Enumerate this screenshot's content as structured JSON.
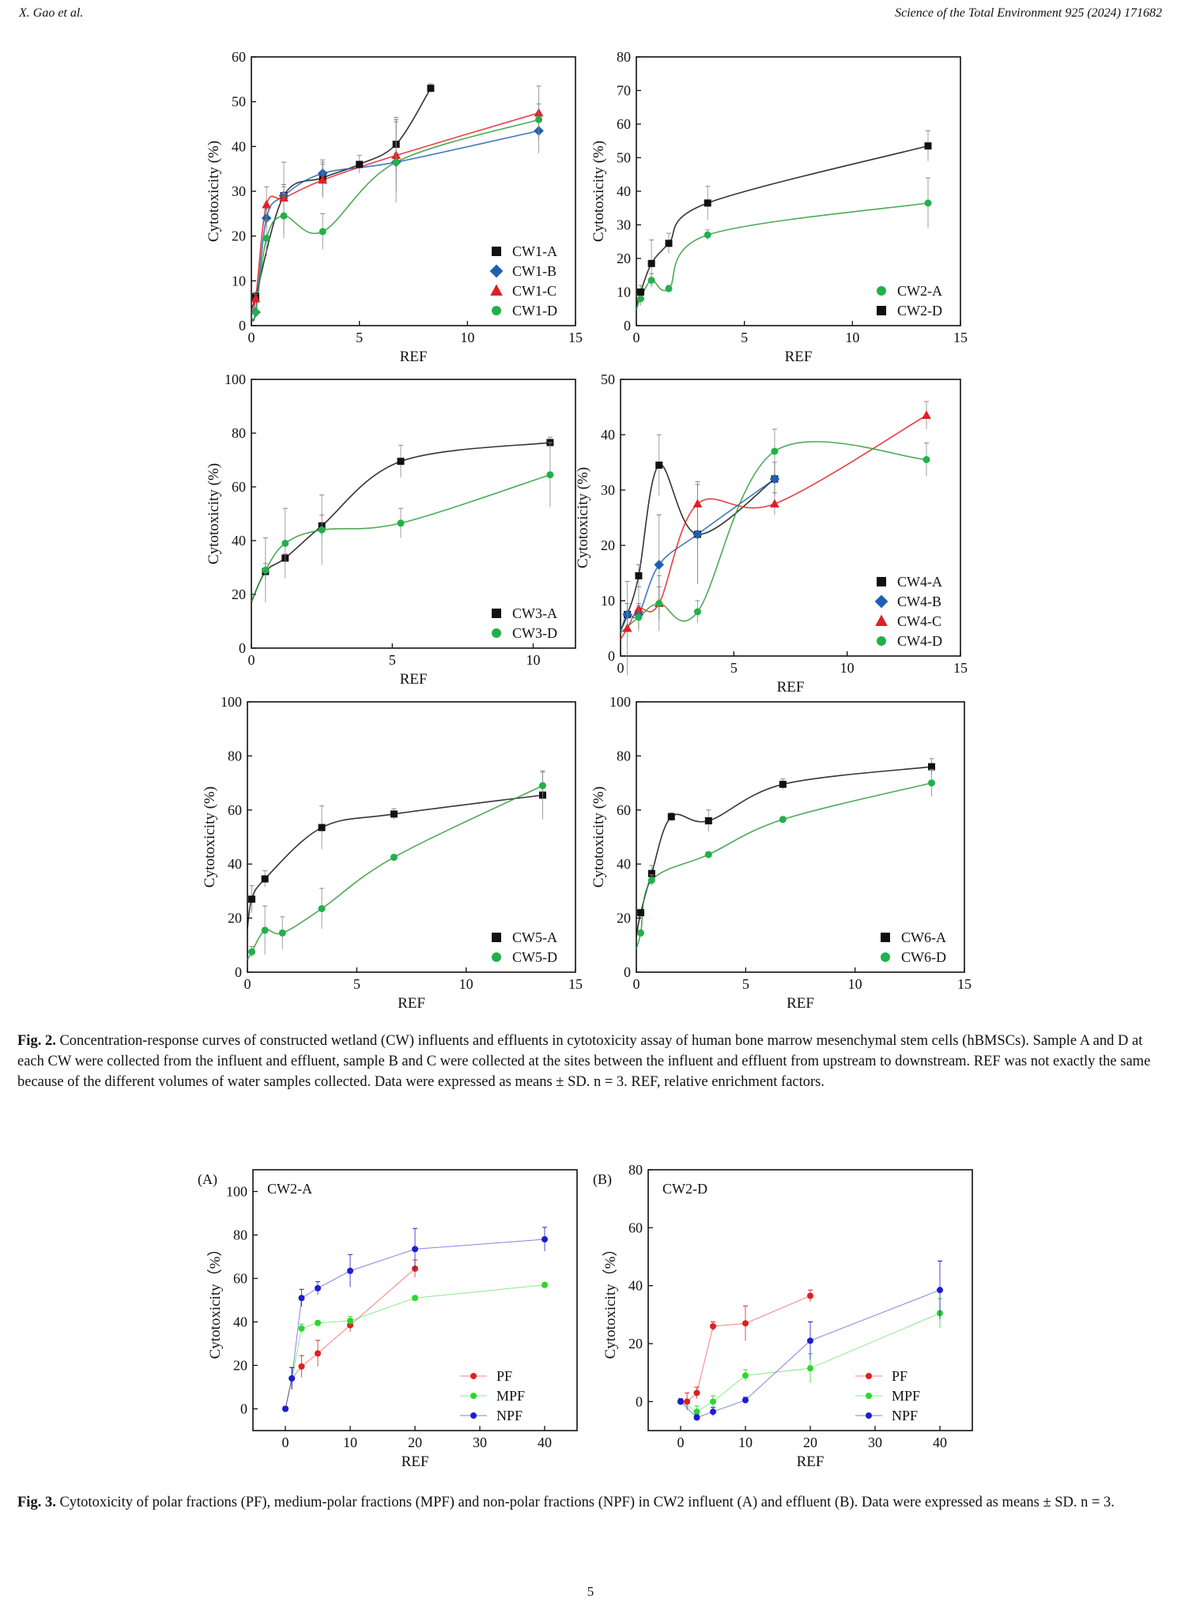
{
  "header": {
    "left": "X. Gao et al.",
    "right": "Science of the Total Environment 925 (2024) 171682"
  },
  "page_number": "5",
  "captions": {
    "fig2_label": "Fig. 2.",
    "fig2_text": "Concentration-response curves of constructed wetland (CW) influents and effluents in cytotoxicity assay of human bone marrow mesenchymal stem cells (hBMSCs). Sample A and D at each CW were collected from the influent and effluent, sample B and C were collected at the sites between the influent and effluent from upstream to downstream. REF was not exactly the same because of the different volumes of water samples collected. Data were expressed as means ± SD. n = 3. REF, relative enrichment factors.",
    "fig3_label": "Fig. 3.",
    "fig3_text": "Cytotoxicity of polar fractions (PF), medium-polar fractions (MPF) and non-polar fractions (NPF) in CW2 influent (A) and effluent (B). Data were expressed as means ± SD. n = 3."
  },
  "colors": {
    "black": "#111111",
    "blue": "#1f5fb0",
    "red": "#e21f26",
    "green": "#22b04b",
    "curve_green": "#2e9b3a",
    "pf": "#e0201e",
    "mpf": "#2bd82b",
    "npf": "#1d1dd0"
  },
  "chart_data": [
    {
      "id": "cw1",
      "type": "scatter",
      "xlabel": "REF",
      "ylabel": "Cytotoxicity (%)",
      "xlim": [
        0,
        15
      ],
      "ylim": [
        0,
        60
      ],
      "xticks": [
        0,
        5,
        10,
        15
      ],
      "yticks": [
        0,
        10,
        20,
        30,
        40,
        50,
        60
      ],
      "legend_position": "bottom-right",
      "series": [
        {
          "name": "CW1-A",
          "marker": "square",
          "color": "black",
          "x": [
            0.2,
            1.5,
            3.3,
            5.0,
            6.7,
            8.3
          ],
          "y": [
            6.5,
            29.0,
            33.0,
            36.0,
            40.5,
            53.0
          ],
          "err": [
            1.0,
            2.5,
            4.0,
            2.0,
            6.0,
            1.0
          ]
        },
        {
          "name": "CW1-B",
          "marker": "diamond",
          "color": "blue",
          "x": [
            0.2,
            0.7,
            1.5,
            3.3,
            6.7,
            13.3
          ],
          "y": [
            3.0,
            24.0,
            29.0,
            34.0,
            36.5,
            43.5
          ],
          "err": [
            1,
            2,
            2,
            2,
            2,
            2
          ]
        },
        {
          "name": "CW1-C",
          "marker": "triangle",
          "color": "red",
          "x": [
            0.2,
            0.7,
            1.5,
            3.3,
            6.7,
            13.3
          ],
          "y": [
            6.0,
            27.0,
            28.5,
            32.5,
            38.0,
            47.5
          ],
          "err": [
            1,
            4,
            8,
            4,
            8,
            2
          ]
        },
        {
          "name": "CW1-D",
          "marker": "circle",
          "color": "green",
          "x": [
            0.2,
            0.7,
            1.5,
            3.3,
            6.7,
            13.3
          ],
          "y": [
            3.0,
            19.5,
            24.5,
            21.0,
            36.5,
            46.0
          ],
          "err": [
            1,
            4,
            5,
            4,
            9,
            7.5
          ]
        }
      ]
    },
    {
      "id": "cw2",
      "type": "scatter",
      "xlabel": "REF",
      "ylabel": "Cytotoxicity (%)",
      "xlim": [
        0,
        15
      ],
      "ylim": [
        0,
        80
      ],
      "xticks": [
        0,
        5,
        10,
        15
      ],
      "yticks": [
        0,
        10,
        20,
        30,
        40,
        50,
        60,
        70,
        80
      ],
      "legend_position": "bottom-right",
      "series": [
        {
          "name": "CW2-A",
          "marker": "circle",
          "color": "green",
          "x": [
            0.2,
            0.7,
            1.5,
            3.3,
            13.5
          ],
          "y": [
            8.0,
            13.5,
            11.0,
            27.0,
            36.5
          ],
          "err": [
            2,
            2,
            1,
            1.5,
            7.5
          ]
        },
        {
          "name": "CW2-D",
          "marker": "square",
          "color": "black",
          "x": [
            0.2,
            0.7,
            1.5,
            3.3,
            13.5
          ],
          "y": [
            10.0,
            18.5,
            24.5,
            36.5,
            53.5
          ],
          "err": [
            2,
            7,
            3,
            5,
            4.5
          ]
        }
      ]
    },
    {
      "id": "cw3",
      "type": "scatter",
      "xlabel": "REF",
      "ylabel": "Cytotoxicity (%)",
      "xlim": [
        0,
        11.5
      ],
      "ylim": [
        0,
        100
      ],
      "xticks": [
        0,
        5,
        10
      ],
      "yticks": [
        0,
        20,
        40,
        60,
        80,
        100
      ],
      "legend_position": "bottom-right",
      "series": [
        {
          "name": "CW3-A",
          "marker": "square",
          "color": "black",
          "x": [
            0.5,
            1.2,
            2.5,
            5.3,
            10.6
          ],
          "y": [
            28.5,
            33.5,
            45.5,
            69.5,
            76.5
          ],
          "err": [
            3,
            1.5,
            4,
            6,
            2
          ]
        },
        {
          "name": "CW3-D",
          "marker": "circle",
          "color": "green",
          "x": [
            0.5,
            1.2,
            2.5,
            5.3,
            10.6
          ],
          "y": [
            29.0,
            39.0,
            44.0,
            46.5,
            64.5
          ],
          "err": [
            12,
            13,
            13,
            5.5,
            12
          ]
        }
      ]
    },
    {
      "id": "cw4",
      "type": "scatter",
      "xlabel": "REF",
      "ylabel": "Cytotoxicity (%)",
      "xlim": [
        0,
        15
      ],
      "ylim": [
        0,
        50
      ],
      "xticks": [
        0,
        5,
        10,
        15
      ],
      "yticks": [
        0,
        10,
        20,
        30,
        40,
        50
      ],
      "legend_position": "bottom-right",
      "series": [
        {
          "name": "CW4-A",
          "marker": "square",
          "color": "black",
          "x": [
            0.3,
            0.8,
            1.7,
            3.4,
            6.8
          ],
          "y": [
            7.5,
            14.5,
            34.5,
            22.0,
            32.0
          ],
          "err": [
            2,
            2,
            5.5,
            9,
            3
          ]
        },
        {
          "name": "CW4-B",
          "marker": "diamond",
          "color": "blue",
          "x": [
            0.3,
            0.8,
            1.7,
            3.4,
            6.8
          ],
          "y": [
            7.5,
            7.5,
            16.5,
            22.0,
            32.0
          ],
          "err": [
            2,
            2,
            9,
            9,
            3
          ]
        },
        {
          "name": "CW4-C",
          "marker": "triangle",
          "color": "red",
          "x": [
            0.3,
            0.8,
            1.7,
            3.4,
            6.8,
            13.5
          ],
          "y": [
            5.0,
            8.5,
            9.5,
            27.5,
            27.5,
            43.5
          ],
          "err": [
            8.5,
            4,
            3,
            4,
            2,
            2.5
          ]
        },
        {
          "name": "CW4-D",
          "marker": "circle",
          "color": "green",
          "x": [
            0.8,
            1.7,
            3.4,
            6.8,
            13.5
          ],
          "y": [
            7.0,
            9.5,
            8.0,
            37.0,
            35.5
          ],
          "err": [
            2,
            5,
            2,
            4,
            3
          ]
        }
      ]
    },
    {
      "id": "cw5",
      "type": "scatter",
      "xlabel": "REF",
      "ylabel": "Cytotoxicity (%)",
      "xlim": [
        0,
        15
      ],
      "ylim": [
        0,
        100
      ],
      "xticks": [
        0,
        5,
        10,
        15
      ],
      "yticks": [
        0,
        20,
        40,
        60,
        80,
        100
      ],
      "legend_position": "bottom-right",
      "series": [
        {
          "name": "CW5-A",
          "marker": "square",
          "color": "black",
          "x": [
            0.2,
            0.8,
            3.4,
            6.7,
            13.5
          ],
          "y": [
            27.0,
            34.5,
            53.5,
            58.5,
            65.5
          ],
          "err": [
            5,
            3,
            8,
            2,
            9
          ]
        },
        {
          "name": "CW5-D",
          "marker": "circle",
          "color": "green",
          "x": [
            0.2,
            0.8,
            1.6,
            3.4,
            6.7,
            13.5
          ],
          "y": [
            7.5,
            15.5,
            14.5,
            23.5,
            42.5,
            69.0
          ],
          "err": [
            2,
            9,
            6,
            7.5,
            1,
            5
          ]
        }
      ]
    },
    {
      "id": "cw6",
      "type": "scatter",
      "xlabel": "REF",
      "ylabel": "Cytotoxicity (%)",
      "xlim": [
        0,
        15
      ],
      "ylim": [
        0,
        100
      ],
      "xticks": [
        0,
        5,
        10,
        15
      ],
      "yticks": [
        0,
        20,
        40,
        60,
        80,
        100
      ],
      "legend_position": "bottom-right",
      "series": [
        {
          "name": "CW6-A",
          "marker": "square",
          "color": "black",
          "x": [
            0.2,
            0.7,
            1.6,
            3.3,
            6.7,
            13.5
          ],
          "y": [
            22.0,
            36.5,
            57.5,
            56.0,
            69.5,
            76.0
          ],
          "err": [
            1,
            3,
            1.5,
            4,
            2,
            3
          ]
        },
        {
          "name": "CW6-D",
          "marker": "circle",
          "color": "green",
          "x": [
            0.2,
            0.7,
            3.3,
            6.7,
            13.5
          ],
          "y": [
            14.5,
            34.0,
            43.5,
            56.5,
            70.0
          ],
          "err": [
            1,
            2,
            1,
            1,
            5
          ]
        }
      ]
    },
    {
      "id": "fig3a",
      "type": "line",
      "panel_label": "(A)",
      "inset_title": "CW2-A",
      "xlabel": "REF",
      "ylabel": "Cytotoxicity（%）",
      "xlim": [
        -5,
        45
      ],
      "ylim": [
        -10,
        110
      ],
      "xticks": [
        0,
        10,
        20,
        30,
        40
      ],
      "yticks": [
        0,
        20,
        40,
        60,
        80,
        100
      ],
      "legend_position": "bottom-right",
      "series": [
        {
          "name": "PF",
          "color": "pf",
          "x": [
            0,
            1,
            2.5,
            5,
            10,
            20
          ],
          "y": [
            0,
            14,
            19.5,
            25.5,
            38.5,
            64.5
          ],
          "err": [
            1,
            5,
            5,
            6,
            3,
            4
          ]
        },
        {
          "name": "MPF",
          "color": "mpf",
          "x": [
            0,
            1,
            2.5,
            5,
            10,
            20,
            40
          ],
          "y": [
            0,
            14,
            37,
            39.5,
            40.5,
            51,
            57
          ],
          "err": [
            1,
            5,
            2,
            1,
            2,
            1,
            1
          ]
        },
        {
          "name": "NPF",
          "color": "npf",
          "x": [
            0,
            1,
            2.5,
            5,
            10,
            20,
            40
          ],
          "y": [
            0,
            14,
            51,
            55.5,
            63.5,
            73.5,
            78
          ],
          "err": [
            1,
            5,
            4,
            3,
            7.5,
            9.5,
            5.5
          ]
        }
      ]
    },
    {
      "id": "fig3b",
      "type": "line",
      "panel_label": "(B)",
      "inset_title": "CW2-D",
      "xlabel": "REF",
      "ylabel": "Cytotoxicity（%）",
      "xlim": [
        -5,
        45
      ],
      "ylim": [
        -10,
        80
      ],
      "xticks": [
        0,
        10,
        20,
        30,
        40
      ],
      "yticks": [
        0,
        20,
        40,
        60,
        80
      ],
      "legend_position": "bottom-right",
      "series": [
        {
          "name": "PF",
          "color": "pf",
          "x": [
            0,
            1,
            2.5,
            5,
            10,
            20
          ],
          "y": [
            0,
            0,
            3,
            26,
            27,
            36.5
          ],
          "err": [
            1,
            3,
            2,
            1.5,
            6,
            2
          ]
        },
        {
          "name": "MPF",
          "color": "mpf",
          "x": [
            0,
            2.5,
            5,
            10,
            20,
            40
          ],
          "y": [
            0,
            -3.5,
            0,
            9,
            11.5,
            30.5
          ],
          "err": [
            1,
            2,
            2,
            2,
            5,
            5
          ]
        },
        {
          "name": "NPF",
          "color": "npf",
          "x": [
            0,
            2.5,
            5,
            10,
            20,
            40
          ],
          "y": [
            0,
            -5.5,
            -3.5,
            0.5,
            21,
            38.5
          ],
          "err": [
            1,
            1,
            1.5,
            1,
            6.5,
            10
          ]
        }
      ]
    }
  ]
}
